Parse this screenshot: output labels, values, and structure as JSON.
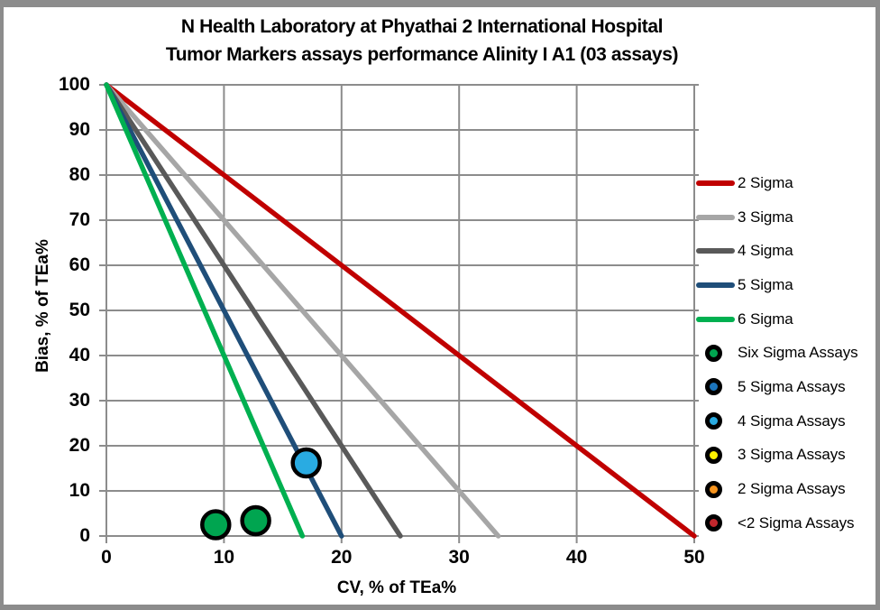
{
  "title": {
    "line1": "N Health Laboratory at Phyathai 2 International Hospital",
    "line2": "Tumor Markers assays performance Alinity I A1 (03 assays)"
  },
  "colors": {
    "frame_border": "#8C8C8C",
    "grid": "#8C8C8C",
    "marker_outline": "#000000",
    "text": "#000000"
  },
  "chart_data": {
    "type": "scatter",
    "title": "N Health Laboratory at Phyathai 2 International Hospital Tumor Markers assays performance Alinity I A1 (03 assays)",
    "xlabel": "CV, % of TEa%",
    "ylabel": "Bias, % of TEa%",
    "xlim": [
      0,
      50
    ],
    "ylim": [
      0,
      100
    ],
    "xticks": [
      0,
      10,
      20,
      30,
      40,
      50
    ],
    "yticks": [
      0,
      10,
      20,
      30,
      40,
      50,
      60,
      70,
      80,
      90,
      100
    ],
    "grid": true,
    "legend_position": "right",
    "sigma_lines": [
      {
        "name": "2 Sigma",
        "color": "#C00000",
        "points": [
          [
            0,
            100
          ],
          [
            50,
            0
          ]
        ]
      },
      {
        "name": "3 Sigma",
        "color": "#A6A6A6",
        "points": [
          [
            0,
            100
          ],
          [
            33.33,
            0
          ]
        ]
      },
      {
        "name": "4 Sigma",
        "color": "#595959",
        "points": [
          [
            0,
            100
          ],
          [
            25,
            0
          ]
        ]
      },
      {
        "name": "5 Sigma",
        "color": "#1F4E79",
        "points": [
          [
            0,
            100
          ],
          [
            20,
            0
          ]
        ]
      },
      {
        "name": "6 Sigma",
        "color": "#00B050",
        "points": [
          [
            0,
            100
          ],
          [
            16.67,
            0
          ]
        ]
      }
    ],
    "series": [
      {
        "name": "Six Sigma Assays",
        "color": "#00A550",
        "points": [
          [
            9.3,
            2.5
          ],
          [
            12.7,
            3.4
          ]
        ]
      },
      {
        "name": "4 Sigma Assays",
        "color": "#29ABE2",
        "points": [
          [
            17,
            16.2
          ]
        ]
      }
    ]
  },
  "legend": {
    "lines": [
      {
        "label": "2 Sigma",
        "color": "#C00000"
      },
      {
        "label": "3 Sigma",
        "color": "#A6A6A6"
      },
      {
        "label": "4 Sigma",
        "color": "#595959"
      },
      {
        "label": "5 Sigma",
        "color": "#1F4E79"
      },
      {
        "label": "6 Sigma",
        "color": "#00B050"
      }
    ],
    "markers": [
      {
        "label": "Six Sigma Assays",
        "color": "#00A550"
      },
      {
        "label": "5 Sigma Assays",
        "color": "#1C75BC"
      },
      {
        "label": "4 Sigma Assays",
        "color": "#29ABE2"
      },
      {
        "label": "3 Sigma Assays",
        "color": "#FFF200"
      },
      {
        "label": "2 Sigma Assays",
        "color": "#F7941D"
      },
      {
        "label": "<2 Sigma Assays",
        "color": "#C1272D"
      }
    ]
  }
}
